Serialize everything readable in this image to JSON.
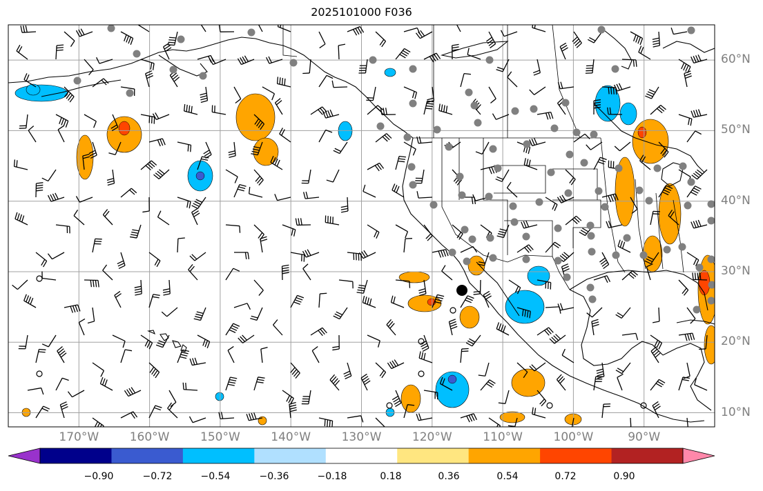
{
  "title": "2025101000 F036",
  "map": {
    "projection": "plate-carree",
    "lon_range": [
      -180,
      -80
    ],
    "lat_range": [
      8,
      65
    ],
    "gridlines": true,
    "gridline_color": "#a0a0a0",
    "lat_labels": [
      "60°N",
      "50°N",
      "40°N",
      "30°N",
      "20°N",
      "10°N"
    ],
    "lon_labels": [
      "170°W",
      "160°W",
      "150°W",
      "140°W",
      "130°W",
      "120°W",
      "110°W",
      "100°W",
      "90°W"
    ],
    "features": [
      "coastlines",
      "country borders",
      "state/province borders",
      "wind barbs",
      "station dots",
      "filled contours"
    ]
  },
  "colorbar": {
    "labels": [
      "−0.90",
      "−0.72",
      "−0.54",
      "−0.36",
      "−0.18",
      "0.18",
      "0.36",
      "0.54",
      "0.72",
      "0.90"
    ],
    "colors": [
      "#9932cc",
      "#00008b",
      "#3a5bd0",
      "#00bfff",
      "#b0e0ff",
      "#ffffff",
      "#ffe680",
      "#ffa500",
      "#ff4500",
      "#b22222",
      "#ff88aa"
    ],
    "extend": "both"
  }
}
